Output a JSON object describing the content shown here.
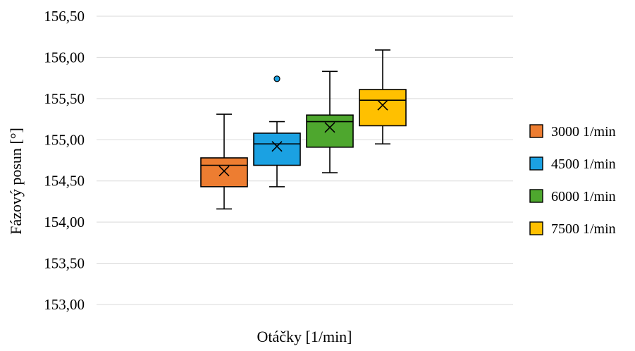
{
  "chart_data": {
    "type": "boxplot",
    "title": "",
    "xlabel": "Otáčky [1/min]",
    "ylabel": "Fázový posun [°]",
    "ylim": [
      153.0,
      156.5
    ],
    "yticks": [
      "153,00",
      "153,50",
      "154,00",
      "154,50",
      "155,00",
      "155,50",
      "156,00",
      "156,50"
    ],
    "grid": "horizontal",
    "legend_position": "right",
    "series": [
      {
        "name": "3000 1/min",
        "color": "#ED7D31",
        "min": 154.16,
        "q1": 154.43,
        "median": 154.69,
        "q3": 154.78,
        "max": 155.31,
        "mean": 154.62,
        "outliers": []
      },
      {
        "name": "4500 1/min",
        "color": "#1BA1E2",
        "min": 154.43,
        "q1": 154.69,
        "median": 154.95,
        "q3": 155.08,
        "max": 155.22,
        "mean": 154.92,
        "outliers": [
          155.74
        ]
      },
      {
        "name": "6000 1/min",
        "color": "#4EA72E",
        "min": 154.6,
        "q1": 154.91,
        "median": 155.22,
        "q3": 155.3,
        "max": 155.83,
        "mean": 155.15,
        "outliers": []
      },
      {
        "name": "7500 1/min",
        "color": "#FFC000",
        "min": 154.95,
        "q1": 155.17,
        "median": 155.48,
        "q3": 155.61,
        "max": 156.09,
        "mean": 155.42,
        "outliers": []
      }
    ]
  }
}
